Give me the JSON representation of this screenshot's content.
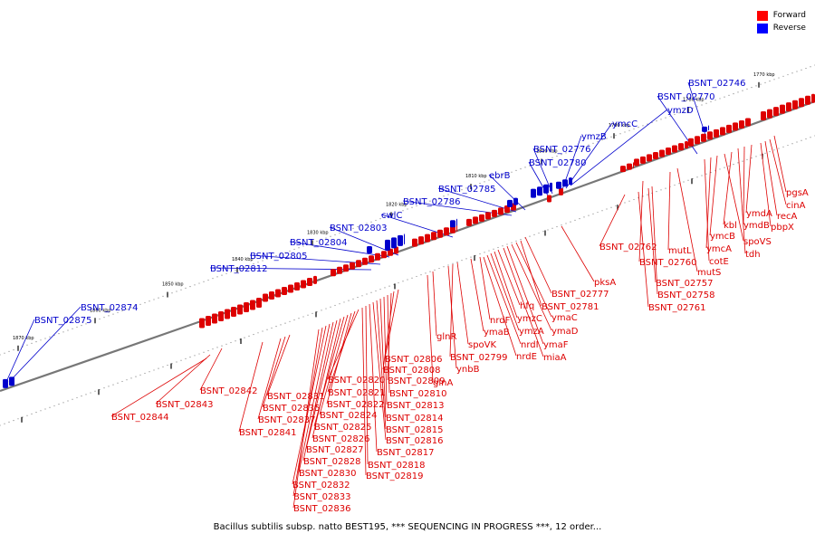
{
  "legend": {
    "forward_label": "Forward",
    "reverse_label": "Reverse",
    "forward_color": "#ff0000",
    "reverse_color": "#0000ff"
  },
  "caption": "Bacillus subtilis subsp. natto BEST195, *** SEQUENCING IN PROGRESS ***, 12 order...",
  "colors": {
    "forward": "#dd0000",
    "reverse": "#0000cc",
    "backbone": "#777777"
  },
  "ruler": {
    "top_ticks": [
      "1870 kbp",
      "1860 kbp",
      "1850 kbp",
      "1840 kbp",
      "1830 kbp",
      "1820 kbp",
      "1810 kbp",
      "1800 kbp",
      "1790 kbp",
      "1780 kbp",
      "1770 kbp"
    ],
    "bottom_ticks": [
      "1870 kbp",
      "1860 kbp",
      "1850 kbp",
      "1840 kbp",
      "1830 kbp",
      "1820 kbp",
      "1810 kbp",
      "1800 kbp",
      "1790 kbp",
      "1780 kbp",
      "1770 kbp"
    ]
  },
  "reverse_genes": [
    "BSNT_02746",
    "BSNT_02770",
    "ymzD",
    "ymcC",
    "ymzB",
    "BSNT_02776",
    "BSNT_02780",
    "ebrB",
    "BSNT_02785",
    "BSNT_02786",
    "cwlC",
    "BSNT_02803",
    "BSNT_02804",
    "BSNT_02805",
    "BSNT_02812",
    "BSNT_02874",
    "BSNT_02875"
  ],
  "forward_genes": [
    "pgsA",
    "cinA",
    "recA",
    "pbpX",
    "ymdA",
    "ymdB",
    "tdh",
    "kbl",
    "spoVS",
    "ymcB",
    "ymcA",
    "cotE",
    "mutL",
    "mutS",
    "BSNT_02760",
    "BSNT_02762",
    "BSNT_02757",
    "BSNT_02758",
    "BSNT_02761",
    "pksA",
    "BSNT_02777",
    "BSNT_02781",
    "ymaC",
    "ymaD",
    "ymaF",
    "miaA",
    "hfq",
    "ymzC",
    "ymzA",
    "nrdI",
    "nrdE",
    "nrdF",
    "ymaB",
    "spoVK",
    "BSNT_02799",
    "ynbB",
    "glnR",
    "glnA",
    "BSNT_02806",
    "BSNT_02808",
    "BSNT_02809",
    "BSNT_02810",
    "BSNT_02813",
    "BSNT_02814",
    "BSNT_02815",
    "BSNT_02816",
    "BSNT_02817",
    "BSNT_02818",
    "BSNT_02819",
    "BSNT_02820",
    "BSNT_02821",
    "BSNT_02822",
    "BSNT_02824",
    "BSNT_02825",
    "BSNT_02826",
    "BSNT_02827",
    "BSNT_02828",
    "BSNT_02830",
    "BSNT_02832",
    "BSNT_02833",
    "BSNT_02836",
    "BSNT_02831",
    "BSNT_02835",
    "BSNT_02837",
    "BSNT_02841",
    "BSNT_02842",
    "BSNT_02843",
    "BSNT_02844"
  ]
}
